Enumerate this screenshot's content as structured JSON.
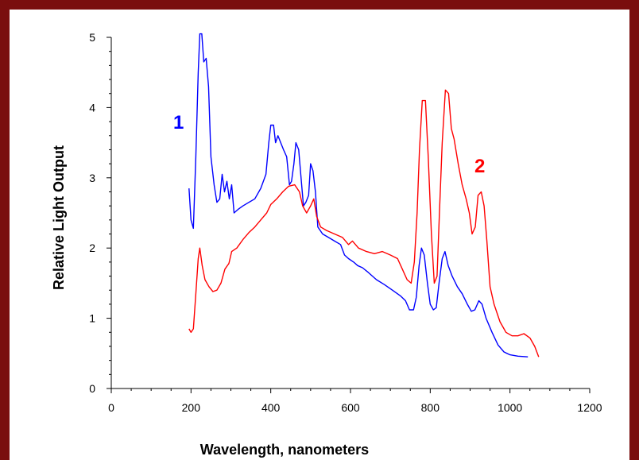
{
  "chart_data": {
    "type": "line",
    "xlabel": "Wavelength, nanometers",
    "ylabel": "Relative Light Output",
    "xlim": [
      0,
      1200
    ],
    "ylim": [
      0,
      5
    ],
    "x_ticks": [
      "0",
      "200",
      "400",
      "600",
      "800",
      "1000",
      "1200"
    ],
    "y_ticks": [
      "0",
      "1",
      "2",
      "3",
      "4",
      "5"
    ],
    "grid": false,
    "series": [
      {
        "name": "1",
        "color": "#0000ff",
        "points": [
          [
            195,
            2.85
          ],
          [
            200,
            2.4
          ],
          [
            206,
            2.28
          ],
          [
            212,
            3.3
          ],
          [
            218,
            4.5
          ],
          [
            222,
            5.05
          ],
          [
            227,
            5.05
          ],
          [
            232,
            4.65
          ],
          [
            238,
            4.7
          ],
          [
            244,
            4.3
          ],
          [
            250,
            3.3
          ],
          [
            258,
            2.9
          ],
          [
            265,
            2.65
          ],
          [
            272,
            2.7
          ],
          [
            278,
            3.05
          ],
          [
            284,
            2.8
          ],
          [
            290,
            2.95
          ],
          [
            296,
            2.7
          ],
          [
            302,
            2.9
          ],
          [
            308,
            2.5
          ],
          [
            318,
            2.55
          ],
          [
            330,
            2.6
          ],
          [
            345,
            2.65
          ],
          [
            360,
            2.7
          ],
          [
            375,
            2.85
          ],
          [
            388,
            3.05
          ],
          [
            395,
            3.5
          ],
          [
            400,
            3.75
          ],
          [
            407,
            3.75
          ],
          [
            412,
            3.5
          ],
          [
            418,
            3.6
          ],
          [
            425,
            3.5
          ],
          [
            432,
            3.4
          ],
          [
            440,
            3.3
          ],
          [
            447,
            2.9
          ],
          [
            452,
            2.95
          ],
          [
            458,
            3.2
          ],
          [
            463,
            3.5
          ],
          [
            470,
            3.4
          ],
          [
            476,
            3.0
          ],
          [
            482,
            2.6
          ],
          [
            488,
            2.65
          ],
          [
            495,
            2.75
          ],
          [
            500,
            3.2
          ],
          [
            506,
            3.1
          ],
          [
            512,
            2.8
          ],
          [
            518,
            2.3
          ],
          [
            530,
            2.2
          ],
          [
            545,
            2.15
          ],
          [
            560,
            2.1
          ],
          [
            575,
            2.05
          ],
          [
            585,
            1.9
          ],
          [
            595,
            1.85
          ],
          [
            608,
            1.8
          ],
          [
            618,
            1.75
          ],
          [
            630,
            1.72
          ],
          [
            645,
            1.65
          ],
          [
            665,
            1.55
          ],
          [
            685,
            1.48
          ],
          [
            705,
            1.4
          ],
          [
            725,
            1.32
          ],
          [
            738,
            1.25
          ],
          [
            748,
            1.12
          ],
          [
            758,
            1.12
          ],
          [
            765,
            1.3
          ],
          [
            772,
            1.75
          ],
          [
            778,
            2.0
          ],
          [
            785,
            1.9
          ],
          [
            793,
            1.5
          ],
          [
            800,
            1.2
          ],
          [
            808,
            1.12
          ],
          [
            815,
            1.15
          ],
          [
            822,
            1.5
          ],
          [
            830,
            1.85
          ],
          [
            837,
            1.95
          ],
          [
            845,
            1.75
          ],
          [
            855,
            1.6
          ],
          [
            868,
            1.45
          ],
          [
            880,
            1.35
          ],
          [
            893,
            1.2
          ],
          [
            903,
            1.1
          ],
          [
            912,
            1.12
          ],
          [
            922,
            1.25
          ],
          [
            930,
            1.2
          ],
          [
            940,
            1.0
          ],
          [
            955,
            0.8
          ],
          [
            970,
            0.62
          ],
          [
            985,
            0.52
          ],
          [
            1000,
            0.48
          ],
          [
            1020,
            0.46
          ],
          [
            1045,
            0.45
          ]
        ]
      },
      {
        "name": "2",
        "color": "#ff0000",
        "points": [
          [
            195,
            0.85
          ],
          [
            200,
            0.8
          ],
          [
            206,
            0.85
          ],
          [
            212,
            1.35
          ],
          [
            218,
            1.85
          ],
          [
            222,
            2.0
          ],
          [
            228,
            1.75
          ],
          [
            235,
            1.55
          ],
          [
            245,
            1.45
          ],
          [
            255,
            1.38
          ],
          [
            265,
            1.4
          ],
          [
            275,
            1.5
          ],
          [
            285,
            1.7
          ],
          [
            295,
            1.78
          ],
          [
            302,
            1.95
          ],
          [
            315,
            2.0
          ],
          [
            330,
            2.12
          ],
          [
            345,
            2.22
          ],
          [
            360,
            2.3
          ],
          [
            375,
            2.4
          ],
          [
            390,
            2.5
          ],
          [
            400,
            2.62
          ],
          [
            415,
            2.7
          ],
          [
            430,
            2.8
          ],
          [
            445,
            2.88
          ],
          [
            460,
            2.9
          ],
          [
            472,
            2.8
          ],
          [
            480,
            2.6
          ],
          [
            490,
            2.5
          ],
          [
            500,
            2.6
          ],
          [
            508,
            2.7
          ],
          [
            515,
            2.45
          ],
          [
            525,
            2.3
          ],
          [
            540,
            2.25
          ],
          [
            560,
            2.2
          ],
          [
            580,
            2.15
          ],
          [
            595,
            2.05
          ],
          [
            605,
            2.1
          ],
          [
            620,
            2.0
          ],
          [
            640,
            1.95
          ],
          [
            660,
            1.92
          ],
          [
            680,
            1.95
          ],
          [
            700,
            1.9
          ],
          [
            718,
            1.85
          ],
          [
            730,
            1.7
          ],
          [
            742,
            1.55
          ],
          [
            752,
            1.5
          ],
          [
            760,
            1.8
          ],
          [
            767,
            2.5
          ],
          [
            773,
            3.4
          ],
          [
            780,
            4.1
          ],
          [
            788,
            4.1
          ],
          [
            795,
            3.3
          ],
          [
            803,
            2.2
          ],
          [
            810,
            1.5
          ],
          [
            817,
            1.6
          ],
          [
            823,
            2.5
          ],
          [
            830,
            3.5
          ],
          [
            838,
            4.25
          ],
          [
            846,
            4.2
          ],
          [
            853,
            3.7
          ],
          [
            860,
            3.55
          ],
          [
            870,
            3.2
          ],
          [
            880,
            2.9
          ],
          [
            890,
            2.7
          ],
          [
            898,
            2.5
          ],
          [
            905,
            2.2
          ],
          [
            913,
            2.3
          ],
          [
            920,
            2.75
          ],
          [
            928,
            2.8
          ],
          [
            935,
            2.6
          ],
          [
            942,
            2.1
          ],
          [
            950,
            1.45
          ],
          [
            960,
            1.2
          ],
          [
            975,
            0.95
          ],
          [
            990,
            0.8
          ],
          [
            1005,
            0.75
          ],
          [
            1020,
            0.75
          ],
          [
            1035,
            0.78
          ],
          [
            1050,
            0.72
          ],
          [
            1062,
            0.6
          ],
          [
            1072,
            0.45
          ]
        ]
      }
    ]
  }
}
